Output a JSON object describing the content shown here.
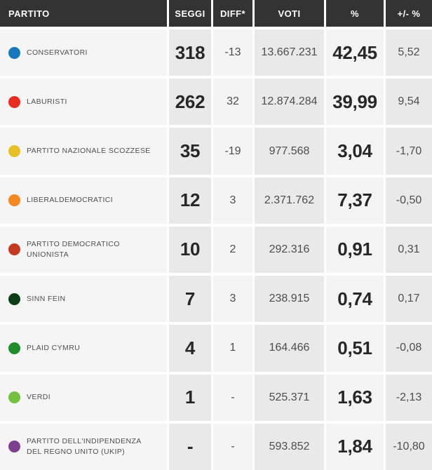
{
  "header": {
    "partito": "PARTITO",
    "seggi": "SEGGI",
    "diff": "DIFF*",
    "voti": "VOTI",
    "pct": "%",
    "delta": "+/- %"
  },
  "table": {
    "rows": [
      {
        "party": "CONSERVATORI",
        "color": "#1878be",
        "seats": "318",
        "diff": "-13",
        "votes": "13.667.231",
        "pct": "42,45",
        "delta": "5,52"
      },
      {
        "party": "LABURISTI",
        "color": "#ea2b1f",
        "seats": "262",
        "diff": "32",
        "votes": "12.874.284",
        "pct": "39,99",
        "delta": "9,54"
      },
      {
        "party": "PARTITO NAZIONALE SCOZZESE",
        "color": "#e6c026",
        "seats": "35",
        "diff": "-19",
        "votes": "977.568",
        "pct": "3,04",
        "delta": "-1,70"
      },
      {
        "party": "LIBERALDEMOCRATICI",
        "color": "#f6871f",
        "seats": "12",
        "diff": "3",
        "votes": "2.371.762",
        "pct": "7,37",
        "delta": "-0,50"
      },
      {
        "party": "PARTITO DEMOCRATICO UNIONISTA",
        "color": "#c43a21",
        "seats": "10",
        "diff": "2",
        "votes": "292.316",
        "pct": "0,91",
        "delta": "0,31"
      },
      {
        "party": "SINN FEIN",
        "color": "#0d3d15",
        "seats": "7",
        "diff": "3",
        "votes": "238.915",
        "pct": "0,74",
        "delta": "0,17"
      },
      {
        "party": "PLAID CYMRU",
        "color": "#1f8e2a",
        "seats": "4",
        "diff": "1",
        "votes": "164.466",
        "pct": "0,51",
        "delta": "-0,08"
      },
      {
        "party": "VERDI",
        "color": "#73c13e",
        "seats": "1",
        "diff": "-",
        "votes": "525.371",
        "pct": "1,63",
        "delta": "-2,13"
      },
      {
        "party": "PARTITO DELL'INDIPENDENZA DEL REGNO UNITO (UKIP)",
        "color": "#7c3e8f",
        "seats": "-",
        "diff": "-",
        "votes": "593.852",
        "pct": "1,84",
        "delta": "-10,80"
      }
    ]
  },
  "chart_data": {
    "type": "table",
    "title": "",
    "columns": [
      "PARTITO",
      "SEGGI",
      "DIFF*",
      "VOTI",
      "%",
      "+/- %"
    ],
    "rows": [
      [
        "CONSERVATORI",
        318,
        -13,
        13667231,
        42.45,
        5.52
      ],
      [
        "LABURISTI",
        262,
        32,
        12874284,
        39.99,
        9.54
      ],
      [
        "PARTITO NAZIONALE SCOZZESE",
        35,
        -19,
        977568,
        3.04,
        -1.7
      ],
      [
        "LIBERALDEMOCRATICI",
        12,
        3,
        2371762,
        7.37,
        -0.5
      ],
      [
        "PARTITO DEMOCRATICO UNIONISTA",
        10,
        2,
        292316,
        0.91,
        0.31
      ],
      [
        "SINN FEIN",
        7,
        3,
        238915,
        0.74,
        0.17
      ],
      [
        "PLAID CYMRU",
        4,
        1,
        164466,
        0.51,
        -0.08
      ],
      [
        "VERDI",
        1,
        null,
        525371,
        1.63,
        -2.13
      ],
      [
        "PARTITO DELL'INDIPENDENZA DEL REGNO UNITO (UKIP)",
        null,
        null,
        593852,
        1.84,
        -10.8
      ]
    ],
    "party_colors": [
      "#1878be",
      "#ea2b1f",
      "#e6c026",
      "#f6871f",
      "#c43a21",
      "#0d3d15",
      "#1f8e2a",
      "#73c13e",
      "#7c3e8f"
    ]
  }
}
